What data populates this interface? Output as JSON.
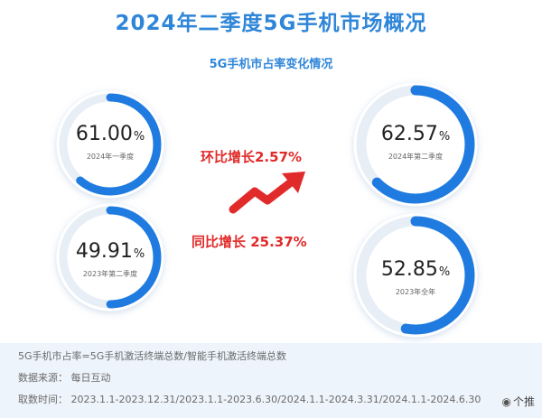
{
  "header": {
    "title": "2024年二季度5G手机市场概况",
    "subtitle": "5G手机市占率变化情况"
  },
  "chart_data": {
    "type": "donut",
    "unit": "%",
    "items": [
      {
        "label": "2024年一季度",
        "value": 61.0,
        "display": "61.00"
      },
      {
        "label": "2023年第二季度",
        "value": 49.91,
        "display": "49.91"
      },
      {
        "label": "2024年第二季度",
        "value": 62.57,
        "display": "62.57"
      },
      {
        "label": "2023年全年",
        "value": 52.85,
        "display": "52.85"
      }
    ],
    "annotations": [
      "环比增长2.57%",
      "同比增长 25.37%"
    ],
    "colors": {
      "fill": "#1f7be0",
      "track": "#e7eef6",
      "accent": "#e12a2a"
    }
  },
  "footer": {
    "formula": "5G手机市占率=5G手机激活终端总数/智能手机激活终端总数",
    "source": "数据来源： 每日互动",
    "period": "取数时间： 2023.1.1-2023.12.31/2023.1.1-2023.6.30/2024.1.1-2024.3.31/2024.1.1-2024.6.30"
  },
  "watermark": {
    "text": "个推",
    "icon": "eye-icon"
  }
}
